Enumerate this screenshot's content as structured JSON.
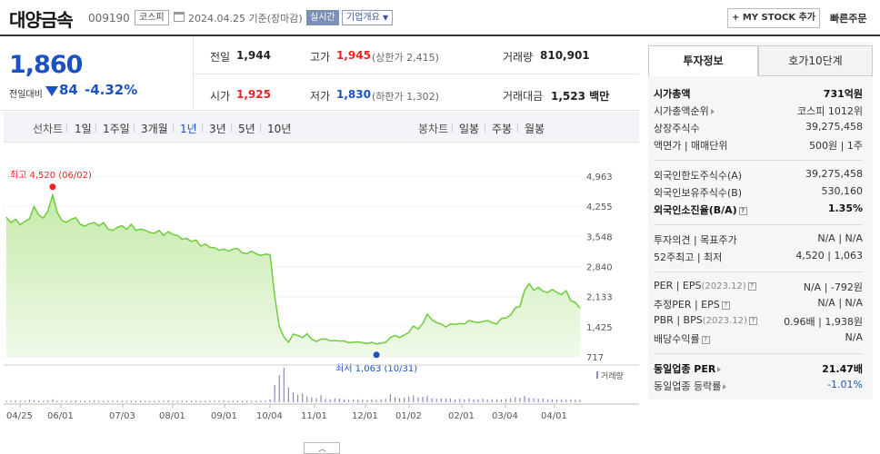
{
  "header": {
    "stock_name": "대양금속",
    "stock_code": "009190",
    "market": "코스피",
    "date": "2024.04.25",
    "date_basis": "기준(장마감)",
    "realtime_badge": "실시간",
    "company_overview": "기업개요",
    "mystock_button": "+ MY STOCK 추가",
    "quick_order": "빠른주문"
  },
  "price": {
    "current": "1,860",
    "change_label": "전일대비",
    "change": "84",
    "change_pct": "-4.32%"
  },
  "summary": {
    "prev_close_label": "전일",
    "prev_close": "1,944",
    "high_label": "고가",
    "high": "1,945",
    "upper_limit": "(상한가 2,415)",
    "volume_label": "거래량",
    "volume": "810,901",
    "open_label": "시가",
    "open": "1,925",
    "low_label": "저가",
    "low": "1,830",
    "lower_limit": "(하한가 1,302)",
    "amount_label": "거래대금",
    "amount": "1,523",
    "amount_unit": "백만"
  },
  "period_tabs": {
    "line_chart_label": "선차트",
    "items": [
      "1일",
      "1주일",
      "3개월",
      "1년",
      "3년",
      "5년",
      "10년"
    ],
    "active": "1년",
    "candle_label": "봉차트",
    "candle_items": [
      "일봉",
      "주봉",
      "월봉"
    ]
  },
  "chart_data": {
    "type": "area",
    "y_ticks": [
      "4,963",
      "4,255",
      "3,548",
      "2,840",
      "2,133",
      "1,425",
      "717"
    ],
    "ylim": [
      717,
      4963
    ],
    "x_ticks": [
      "04/25",
      "06/01",
      "07/03",
      "08/01",
      "09/01",
      "10/04",
      "11/01",
      "12/01",
      "01/02",
      "02/01",
      "03/04",
      "04/01"
    ],
    "high_annotation": "최고 4,520 (06/02)",
    "low_annotation": "최저 1,063 (10/31)",
    "volume_label": "거래량",
    "series": [
      {
        "values": [
          4000,
          3870,
          3950,
          3820,
          3900,
          3960,
          4250,
          4050,
          3980,
          4150,
          4520,
          4110,
          3920,
          3880,
          3950,
          3990,
          3830,
          3790,
          3850,
          3870,
          3800,
          3870,
          3720,
          3690,
          3760,
          3800,
          3710,
          3830,
          3690,
          3720,
          3690,
          3640,
          3620,
          3690,
          3570,
          3660,
          3590,
          3570,
          3480,
          3500,
          3430,
          3460,
          3320,
          3370,
          3290,
          3280,
          3220,
          3250,
          3200,
          3250,
          3260,
          3160,
          3140,
          3200,
          3140,
          3100,
          3130,
          3120,
          2160,
          1430,
          1180,
          1063,
          1250,
          1220,
          1170,
          1260,
          1130,
          1080,
          1130,
          1140,
          1090,
          1100,
          1090,
          1090,
          1050,
          1060,
          1070,
          1050,
          1030,
          1060,
          1020,
          1040,
          1060,
          1170,
          1220,
          1170,
          1230,
          1290,
          1440,
          1370,
          1500,
          1720,
          1590,
          1520,
          1490,
          1420,
          1490,
          1480,
          1500,
          1490,
          1570,
          1540,
          1520,
          1550,
          1570,
          1520,
          1490,
          1620,
          1630,
          1700,
          1870,
          1900,
          2270,
          2440,
          2280,
          2350,
          2260,
          2230,
          2300,
          2230,
          2180,
          2270,
          2040,
          1990,
          1860
        ]
      }
    ],
    "volume": [
      3,
      3,
      4,
      3,
      3,
      5,
      4,
      3,
      3,
      4,
      6,
      3,
      3,
      3,
      3,
      4,
      3,
      3,
      3,
      4,
      3,
      3,
      3,
      3,
      3,
      3,
      3,
      3,
      3,
      3,
      3,
      3,
      3,
      3,
      3,
      4,
      3,
      3,
      3,
      3,
      3,
      3,
      3,
      3,
      3,
      3,
      3,
      4,
      3,
      3,
      3,
      3,
      3,
      3,
      3,
      3,
      3,
      6,
      35,
      55,
      70,
      30,
      20,
      15,
      18,
      12,
      10,
      8,
      14,
      7,
      6,
      8,
      7,
      6,
      5,
      5,
      6,
      5,
      5,
      6,
      5,
      6,
      7,
      16,
      10,
      8,
      9,
      12,
      14,
      10,
      11,
      13,
      8,
      7,
      7,
      7,
      8,
      6,
      7,
      6,
      7,
      6,
      6,
      7,
      6,
      6,
      6,
      6,
      7,
      8,
      10,
      9,
      13,
      9,
      8,
      7,
      7,
      6,
      6,
      6,
      6,
      6,
      6,
      5,
      5
    ]
  },
  "right_panel": {
    "tab_invest": "투자정보",
    "tab_orderbook": "호가10단계",
    "market_cap_label": "시가총액",
    "market_cap": "731억원",
    "rank_label": "시가총액순위",
    "rank": "코스피 1012위",
    "shares_label": "상장주식수",
    "shares": "39,275,458",
    "par_label": "액면가 | 매매단위",
    "par": "500원 | 1주",
    "foreign_limit_label": "외국인한도주식수(A)",
    "foreign_limit": "39,275,458",
    "foreign_hold_label": "외국인보유주식수(B)",
    "foreign_hold": "530,160",
    "foreign_ratio_label": "외국인소진율(B/A)",
    "foreign_ratio": "1.35%",
    "opinion_label": "투자의견 | 목표주가",
    "opinion": "N/A | N/A",
    "week52_label": "52주최고 | 최저",
    "week52": "4,520 | 1,063",
    "per_label": "PER | EPS",
    "per_year": "(2023.12)",
    "per": "N/A | -792원",
    "est_per_label": "추정PER | EPS",
    "est_per": "N/A | N/A",
    "pbr_label": "PBR | BPS",
    "pbr_year": "(2023.12)",
    "pbr": "0.96배 | 1,938원",
    "div_label": "배당수익률",
    "div": "N/A",
    "sector_per_label": "동일업종 PER",
    "sector_per": "21.47배",
    "sector_chg_label": "동일업종 등락률",
    "sector_chg": "-1.01%"
  }
}
